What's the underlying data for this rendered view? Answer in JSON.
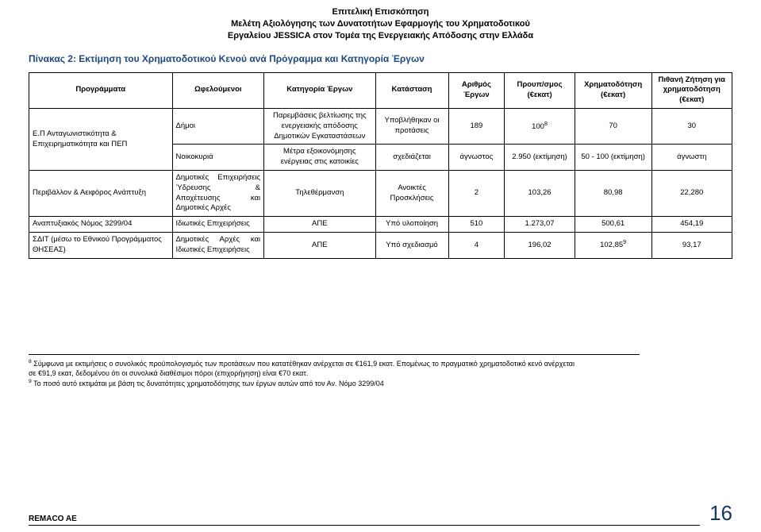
{
  "header": {
    "line1": "Επιτελική Επισκόπηση",
    "line2": "Μελέτη Αξιολόγησης των Δυνατοτήτων Εφαρμογής του Χρηματοδοτικού",
    "line3": "Εργαλείου JESSICA στον Τομέα της Ενεργειακής Απόδοσης στην Ελλάδα"
  },
  "table": {
    "title": "Πίνακας 2: Εκτίμηση του Χρηματοδοτικού Κενού ανά Πρόγραμμα και Κατηγορία Έργων",
    "columns": [
      "Προγράμματα",
      "Ωφελούμενοι",
      "Κατηγορία Έργων",
      "Κατάσταση",
      "Αριθμός Έργων",
      "Προυπ/σμος (€εκατ)",
      "Χρηματοδότηση (€εκατ)",
      "Πιθανή Ζήτηση για χρηματοδότηση (€εκατ)"
    ],
    "rows": [
      {
        "program": "Ε.Π Ανταγωνιστικότητα & Επιχειρηματικότητα και ΠΕΠ",
        "program_rowspan": 2,
        "beneficiary": "Δήμοι",
        "category": "Παρεμβάσεις βελτίωσης της ενεργειακής απόδοσης Δημοτικών Εγκαταστάσεων",
        "status": "Υποβλήθηκαν οι προτάσεις",
        "num": "189",
        "budget": "100",
        "budget_sup": "8",
        "funding": "70",
        "demand": "30"
      },
      {
        "beneficiary": "Νοικοκυριά",
        "category": "Μέτρα εξοικονόμησης ενέργειας στις κατοικίες",
        "status": "σχεδιάζεται",
        "num": "άγνωστος",
        "budget": "2.950 (εκτίμηση)",
        "funding": "50 - 100 (εκτίμηση)",
        "demand": "άγνωστη"
      },
      {
        "program": "Περιβάλλον & Αειφόρος Ανάπτυξη",
        "beneficiary": "Δημοτικές Επιχειρήσεις Ύδρευσης & Αποχέτευσης και Δημοτικές Αρχές",
        "category": "Τηλεθέρμανση",
        "status": "Ανοικτές Προσκλήσεις",
        "num": "2",
        "budget": "103,26",
        "funding": "80,98",
        "demand": "22,280"
      },
      {
        "program": "Αναπτυξιακός Νόμος  3299/04",
        "beneficiary": "Ιδιωτικές Επιχειρήσεις",
        "category": "ΑΠΕ",
        "status": "Υπό υλοποίηση",
        "num": "510",
        "budget": "1.273,07",
        "funding": "500,61",
        "demand": "454,19"
      },
      {
        "program": "ΣΔΙΤ (μέσω το Εθνικού  Προγράμματος ΘΗΣΕΑΣ)",
        "beneficiary": "Δημοτικές Αρχές και Ιδιωτικές Επιχειρήσεις",
        "category": "ΑΠΕ",
        "status": "Υπό σχεδιασμό",
        "num": "4",
        "budget": "196,02",
        "funding": "102,85",
        "funding_sup": "9",
        "demand": "93,17"
      }
    ],
    "title_color": "#1f497d"
  },
  "footnotes": {
    "fn8_a": " Σύμφωνα με εκτιμήσεις ο συνολικός προϋπολογισμός των προτάσεων που κατατέθηκαν ανέρχεται σε €161,9 εκατ. Επομένως το πραγματικό χρηματοδοτικό κενό ανέρχεται",
    "fn8_b": "σε €91,9  εκατ, δεδομένου ότι οι συνολικά διαθέσιμοι πόροι (επιχορήγηση) είναι €70 εκατ.",
    "fn9": " Το ποσό αυτό εκτιμάται με βάση τις δυνατότητες χρηματοδότησης των έργων αυτών από τον Αν. Νόμο 3299/04"
  },
  "footer": {
    "company": "REMACO AE",
    "page": "16"
  }
}
